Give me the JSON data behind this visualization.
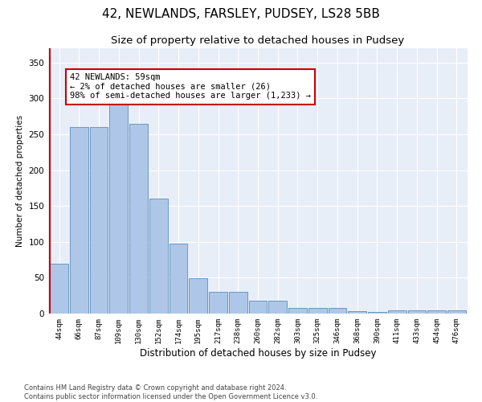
{
  "title": "42, NEWLANDS, FARSLEY, PUDSEY, LS28 5BB",
  "subtitle": "Size of property relative to detached houses in Pudsey",
  "xlabel": "Distribution of detached houses by size in Pudsey",
  "ylabel": "Number of detached properties",
  "bar_labels": [
    "44sqm",
    "66sqm",
    "87sqm",
    "109sqm",
    "130sqm",
    "152sqm",
    "174sqm",
    "195sqm",
    "217sqm",
    "238sqm",
    "260sqm",
    "282sqm",
    "303sqm",
    "325sqm",
    "346sqm",
    "368sqm",
    "390sqm",
    "411sqm",
    "433sqm",
    "454sqm",
    "476sqm"
  ],
  "bar_values": [
    70,
    260,
    260,
    295,
    265,
    160,
    98,
    49,
    30,
    30,
    18,
    18,
    8,
    8,
    8,
    3,
    2,
    4,
    4,
    4,
    4
  ],
  "bar_color": "#aec6e8",
  "bar_edge_color": "#5b8db8",
  "highlight_line_color": "#cc0000",
  "annotation_text": "42 NEWLANDS: 59sqm\n← 2% of detached houses are smaller (26)\n98% of semi-detached houses are larger (1,233) →",
  "annotation_box_color": "#cc0000",
  "ylim": [
    0,
    370
  ],
  "yticks": [
    0,
    50,
    100,
    150,
    200,
    250,
    300,
    350
  ],
  "plot_bg_color": "#e8eef8",
  "footer_text": "Contains HM Land Registry data © Crown copyright and database right 2024.\nContains public sector information licensed under the Open Government Licence v3.0.",
  "title_fontsize": 11,
  "subtitle_fontsize": 9.5,
  "annotation_fontsize": 7.5,
  "tick_fontsize": 6.5,
  "ylabel_fontsize": 7.5,
  "xlabel_fontsize": 8.5
}
